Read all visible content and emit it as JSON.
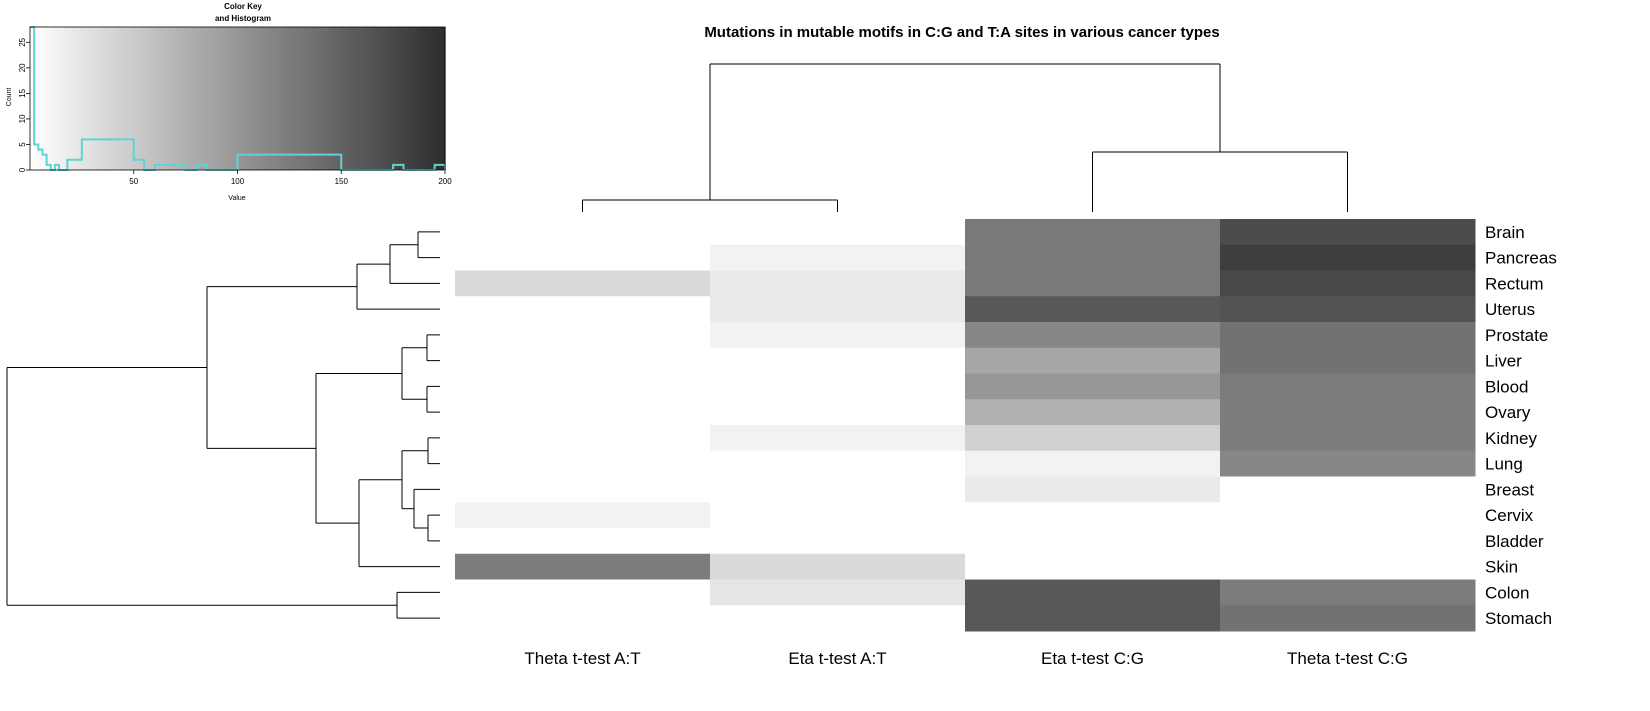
{
  "chart_data": {
    "type": "heatmap",
    "title": "Mutations in mutable motifs in C:G and T:A sites in various cancer types",
    "columns": [
      "Theta t-test A:T",
      "Eta t-test A:T",
      "Eta t-test C:G",
      "Theta t-test C:G"
    ],
    "rows": [
      "Brain",
      "Pancreas",
      "Rectum",
      "Uterus",
      "Prostate",
      "Liver",
      "Blood",
      "Ovary",
      "Kidney",
      "Lung",
      "Breast",
      "Cervix",
      "Bladder",
      "Skin",
      "Colon",
      "Stomach"
    ],
    "values": [
      [
        0,
        0,
        128,
        172
      ],
      [
        0,
        12,
        128,
        185
      ],
      [
        35,
        20,
        128,
        175
      ],
      [
        0,
        20,
        160,
        165
      ],
      [
        0,
        12,
        115,
        135
      ],
      [
        0,
        0,
        85,
        135
      ],
      [
        0,
        0,
        100,
        125
      ],
      [
        0,
        0,
        75,
        125
      ],
      [
        0,
        12,
        45,
        125
      ],
      [
        0,
        0,
        12,
        115
      ],
      [
        0,
        0,
        20,
        0
      ],
      [
        12,
        0,
        0,
        0
      ],
      [
        0,
        0,
        0,
        0
      ],
      [
        125,
        35,
        0,
        0
      ],
      [
        0,
        25,
        160,
        125
      ],
      [
        0,
        0,
        160,
        135
      ]
    ],
    "value_range": [
      0,
      200
    ],
    "color_scale": {
      "low": "#ffffff",
      "high": "#2e2e2e"
    },
    "color_key": {
      "title": "Color Key\nand Histogram",
      "xlabel": "Value",
      "ylabel": "Count",
      "x_ticks": [
        50,
        100,
        150,
        200
      ],
      "y_ticks": [
        0,
        5,
        10,
        15,
        20,
        25
      ],
      "xlim": [
        0,
        200
      ],
      "ylim": [
        0,
        28
      ],
      "histogram_color": "#5fd3d3",
      "histogram": {
        "x": [
          0,
          2,
          4,
          6,
          8,
          10,
          12,
          14,
          18,
          22,
          25,
          50,
          55,
          60,
          65,
          75,
          80,
          85,
          90,
          100,
          150,
          175,
          180,
          195,
          200
        ],
        "y": [
          28,
          5,
          4,
          3,
          1,
          0,
          1,
          0,
          2,
          2,
          6,
          2,
          0,
          1,
          1,
          0,
          1,
          0,
          0,
          3,
          0,
          1,
          0,
          1,
          0
        ]
      }
    }
  }
}
